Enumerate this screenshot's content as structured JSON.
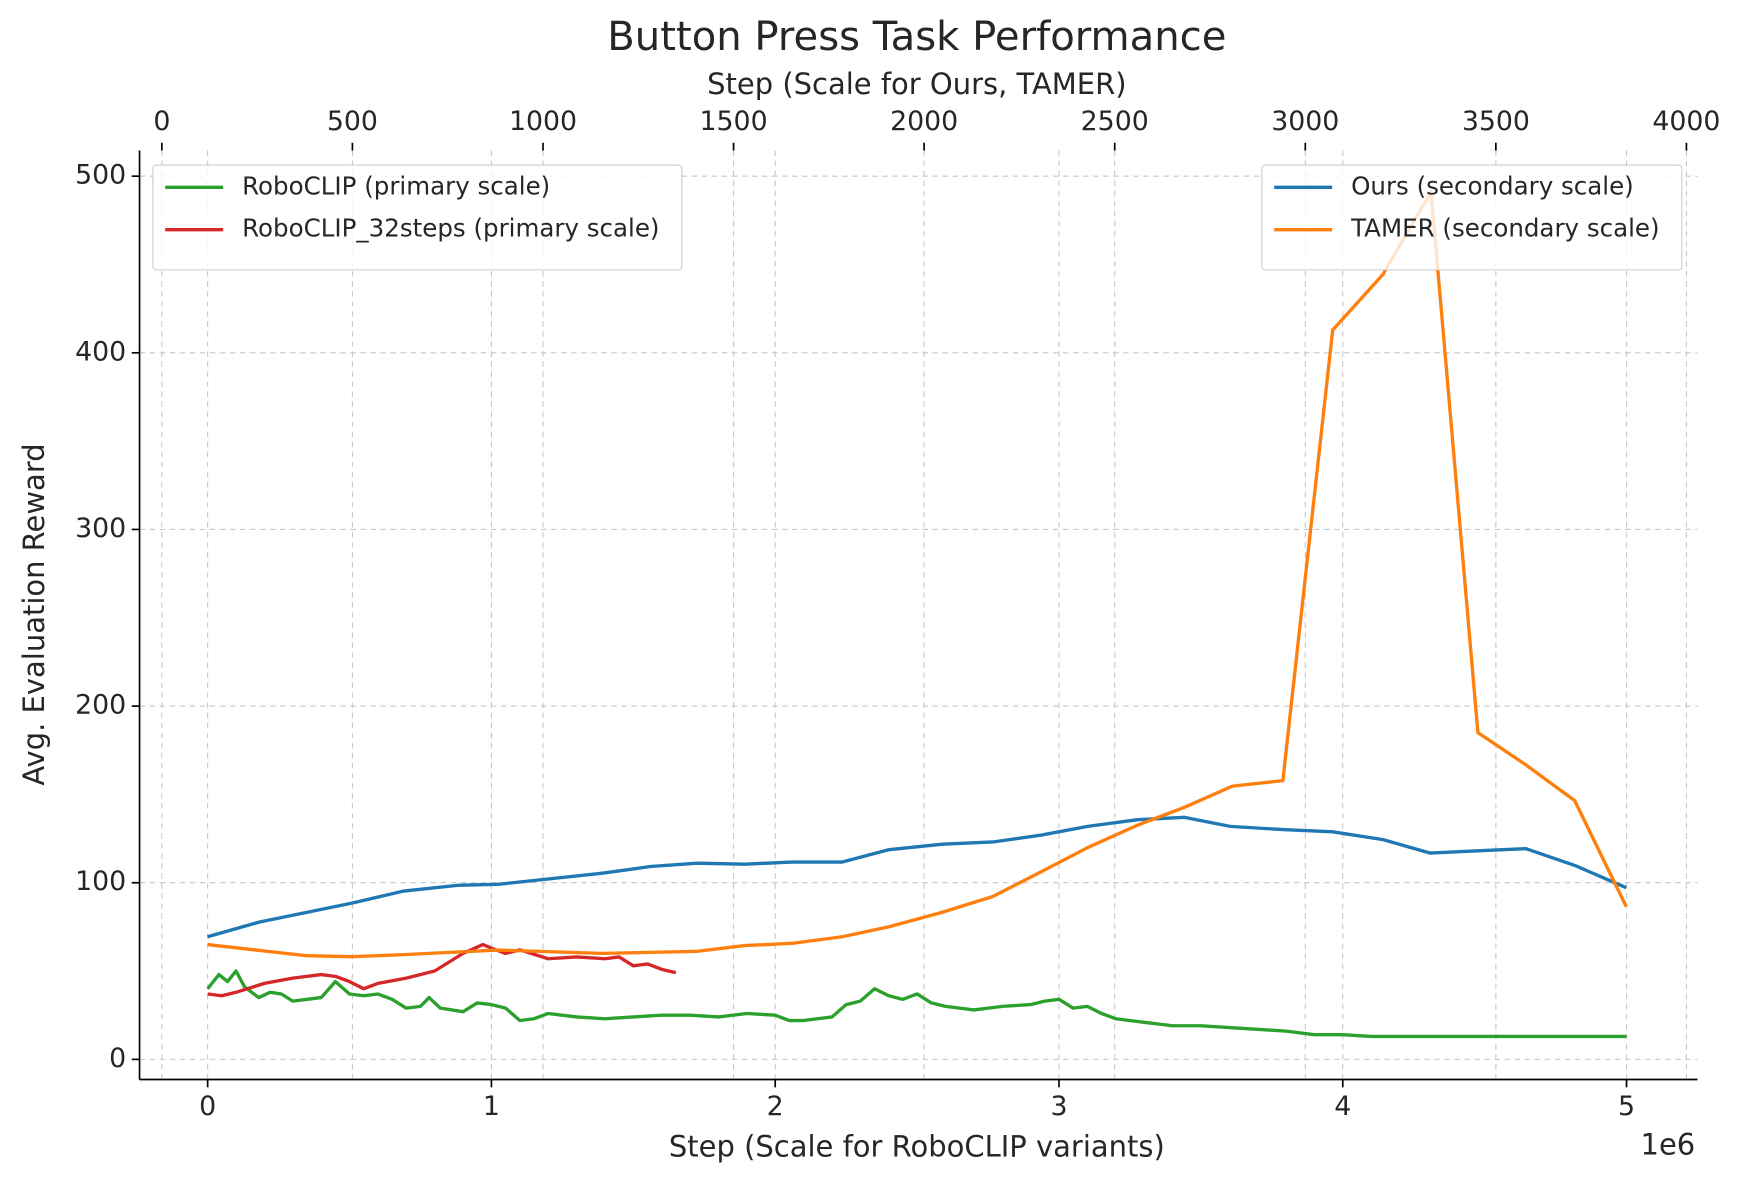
{
  "chart_data": {
    "type": "line",
    "title": "Button Press Task Performance",
    "xlabel": "Step (Scale for RoboCLIP variants)",
    "x2label": "Step (Scale for Ours, TAMER)",
    "ylabel": "Avg. Evaluation Reward",
    "x_offset_label": "1e6",
    "xlim": [
      -0.24,
      5.25
    ],
    "xticks": [
      0,
      1,
      2,
      3,
      4,
      5
    ],
    "x2lim": [
      -58.5,
      4029
    ],
    "x2ticks": [
      0,
      500,
      1000,
      1500,
      2000,
      2500,
      3000,
      3500,
      4000
    ],
    "ylim": [
      -11.4,
      514.5
    ],
    "yticks": [
      0,
      100,
      200,
      300,
      400,
      500
    ],
    "grid": true,
    "series": [
      {
        "name": "RoboCLIP (primary scale)",
        "color": "#2ca02c",
        "axis": "x",
        "legend": "upper left",
        "x": [
          0,
          0.04,
          0.07,
          0.1,
          0.13,
          0.18,
          0.22,
          0.26,
          0.3,
          0.35,
          0.4,
          0.45,
          0.5,
          0.55,
          0.6,
          0.65,
          0.7,
          0.75,
          0.78,
          0.82,
          0.9,
          0.95,
          1.0,
          1.05,
          1.1,
          1.15,
          1.2,
          1.3,
          1.4,
          1.5,
          1.6,
          1.7,
          1.8,
          1.9,
          2.0,
          2.05,
          2.1,
          2.2,
          2.25,
          2.3,
          2.35,
          2.4,
          2.45,
          2.5,
          2.55,
          2.6,
          2.7,
          2.8,
          2.9,
          2.95,
          3.0,
          3.05,
          3.1,
          3.15,
          3.2,
          3.3,
          3.4,
          3.5,
          3.6,
          3.7,
          3.8,
          3.9,
          4.0,
          4.1,
          4.2,
          5.0
        ],
        "values": [
          40,
          48,
          44,
          50,
          41,
          35,
          38,
          37,
          33,
          34,
          35,
          44,
          37,
          36,
          37,
          34,
          29,
          30,
          35,
          29,
          27,
          32,
          31,
          29,
          22,
          23,
          26,
          24,
          23,
          24,
          25,
          25,
          24,
          26,
          25,
          22,
          22,
          24,
          31,
          33,
          40,
          36,
          34,
          37,
          32,
          30,
          28,
          30,
          31,
          33,
          34,
          29,
          30,
          26,
          23,
          21,
          19,
          19,
          18,
          17,
          16,
          14,
          14,
          13,
          13,
          13
        ]
      },
      {
        "name": "RoboCLIP_32steps (primary scale)",
        "color": "#d62728",
        "axis": "x",
        "legend": "upper left",
        "x": [
          0,
          0.05,
          0.1,
          0.2,
          0.3,
          0.4,
          0.45,
          0.5,
          0.55,
          0.6,
          0.7,
          0.8,
          0.9,
          0.97,
          1.0,
          1.05,
          1.1,
          1.2,
          1.3,
          1.4,
          1.45,
          1.5,
          1.55,
          1.6,
          1.65
        ],
        "values": [
          37,
          36,
          38,
          43,
          46,
          48,
          47,
          44,
          40,
          43,
          46,
          50,
          60,
          65,
          63,
          60,
          62,
          57,
          58,
          57,
          58,
          53,
          54,
          51,
          49
        ]
      },
      {
        "name": "Ours (secondary scale)",
        "color": "#1f77b4",
        "axis": "x2",
        "legend": "upper right",
        "x": [
          120,
          255,
          497,
          635,
          775,
          881,
          1156,
          1282,
          1405,
          1530,
          1653,
          1785,
          1908,
          2048,
          2180,
          2306,
          2429,
          2560,
          2683,
          2803,
          2941,
          3072,
          3204,
          3327,
          3453,
          3579,
          3707,
          3842
        ],
        "values": [
          69.4,
          77.7,
          88.4,
          95.3,
          98.5,
          99.1,
          105.4,
          109.2,
          111.1,
          110.5,
          111.7,
          111.7,
          118.7,
          121.8,
          123.1,
          126.9,
          131.9,
          135.7,
          137.0,
          131.9,
          130.1,
          128.8,
          124.4,
          116.8,
          118.1,
          119.3,
          109.8,
          97.2
        ]
      },
      {
        "name": "TAMER (secondary scale)",
        "color": "#ff7f0e",
        "axis": "x2",
        "legend": "upper right",
        "x": [
          120,
          380,
          497,
          635,
          881,
          1156,
          1282,
          1405,
          1530,
          1653,
          1785,
          1908,
          2048,
          2180,
          2306,
          2429,
          2560,
          2683,
          2809,
          2941,
          3072,
          3204,
          3330,
          3453,
          3579,
          3707,
          3842
        ],
        "values": [
          65.0,
          58.7,
          58.1,
          59.3,
          61.9,
          60.0,
          60.6,
          61.2,
          64.4,
          65.7,
          69.4,
          75.1,
          83.3,
          92.2,
          106.1,
          119.9,
          132.6,
          142.7,
          154.7,
          157.8,
          412.9,
          444.4,
          491.2,
          185.0,
          166.7,
          146.5,
          86.5
        ]
      }
    ]
  }
}
